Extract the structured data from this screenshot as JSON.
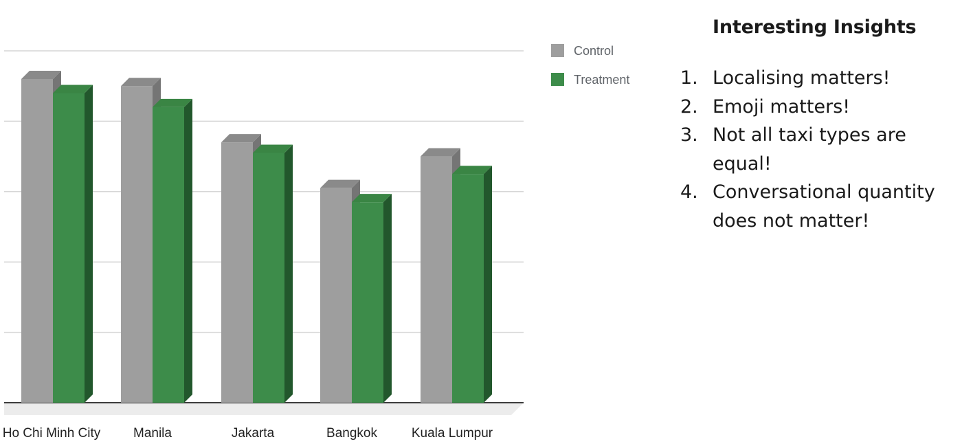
{
  "chart_data": {
    "type": "bar",
    "categories": [
      "Ho Chi Minh City",
      "Manila",
      "Jakarta",
      "Bangkok",
      "Kuala Lumpur"
    ],
    "series": [
      {
        "name": "Control",
        "values": [
          4.6,
          4.5,
          3.7,
          3.05,
          3.5
        ]
      },
      {
        "name": "Treatment",
        "values": [
          4.4,
          4.2,
          3.55,
          2.85,
          3.25
        ]
      }
    ],
    "ylim": [
      0,
      5
    ],
    "gridlines": [
      1,
      2,
      3,
      4,
      5
    ],
    "grid": true,
    "legend_position": "top-right",
    "title": "",
    "xlabel": "",
    "ylabel": ""
  },
  "colors": {
    "control_face": "#9e9e9e",
    "control_side": "#757575",
    "control_top": "#8a8a8a",
    "treatment_face": "#3d8c4a",
    "treatment_side": "#22572c",
    "treatment_top": "#3a8544",
    "grid": "#d6d6d6",
    "axis": "#3c3c3c",
    "floor": "#ececec",
    "label": "#222222",
    "legend_text": "#5f6368"
  },
  "insights": {
    "title": "Interesting Insights",
    "items": [
      {
        "num": "1.",
        "text": "Localising matters!"
      },
      {
        "num": "2.",
        "text": "Emoji matters!"
      },
      {
        "num": "3.",
        "text": "Not all taxi types are equal!"
      },
      {
        "num": "4.",
        "text": "Conversational quantity does not matter!"
      }
    ]
  }
}
